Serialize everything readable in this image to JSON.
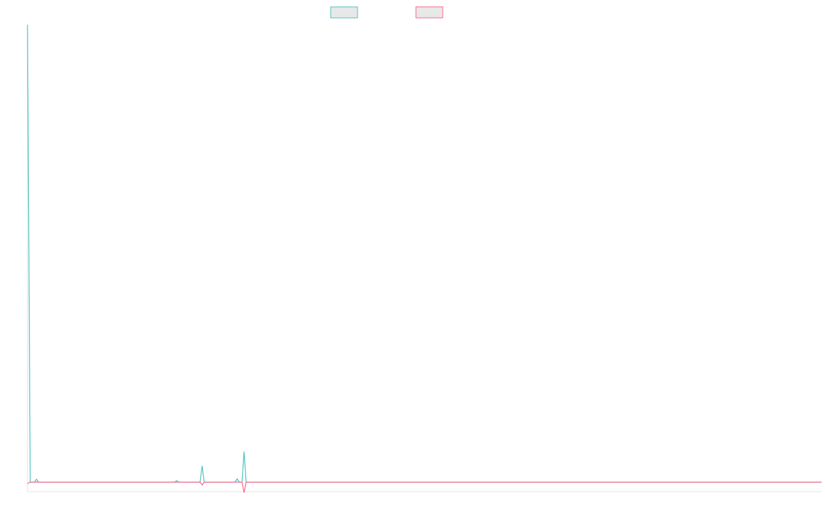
{
  "chart_data": {
    "type": "line",
    "x": [
      0,
      4,
      10,
      13,
      16,
      214,
      217,
      220,
      251,
      254,
      257,
      302,
      305,
      308,
      312,
      315,
      318,
      1155
    ],
    "xlim": [
      0,
      1155
    ],
    "ylim": [
      -1,
      48
    ],
    "series": [
      {
        "color": "#4bc0c0",
        "values": [
          48,
          0,
          0,
          0.3,
          0,
          0,
          0.15,
          0,
          0,
          1.7,
          0,
          0,
          0.35,
          0,
          0,
          3.2,
          0,
          0
        ]
      },
      {
        "color": "#ff6384",
        "values": [
          -0.15,
          0,
          0,
          0,
          0,
          0,
          0,
          0,
          0,
          -0.3,
          0,
          0,
          0,
          0,
          0,
          -1.1,
          0,
          0
        ]
      }
    ]
  }
}
